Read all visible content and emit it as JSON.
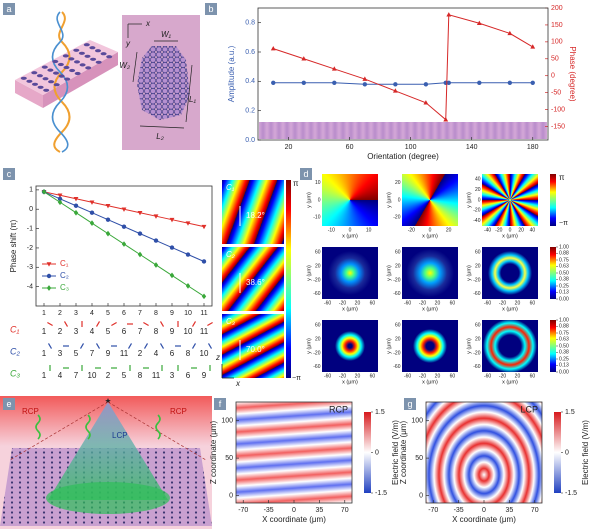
{
  "panel_labels": [
    "a",
    "b",
    "c",
    "d",
    "e",
    "f",
    "g"
  ],
  "panel_a": {
    "axes": [
      "x",
      "y"
    ],
    "dims": [
      "W₁",
      "W₂",
      "L₁",
      "L₂"
    ]
  },
  "chart_data": [
    {
      "type": "line",
      "x": [
        10,
        30,
        50,
        70,
        90,
        110,
        123,
        125,
        145,
        165,
        180
      ],
      "xlim": [
        0,
        190
      ],
      "xticks": [
        20,
        60,
        100,
        140,
        180
      ],
      "xlabel": "Orientation (degree)",
      "ylabel": "Amplitude (a.u.)",
      "y2label": "Phase (degree)",
      "ylim": [
        0,
        0.9
      ],
      "yticks": [
        {
          "value": 0,
          "label": "0.0"
        },
        0.2,
        0.4,
        0.6,
        0.8
      ],
      "y2lim": [
        -190,
        200
      ],
      "y2ticks": [
        -150,
        -100,
        -50,
        0,
        50,
        100,
        150,
        200
      ],
      "series": [
        {
          "color": "#3a5fb0",
          "marker": "circle",
          "values": [
            0.39,
            0.39,
            0.39,
            0.38,
            0.38,
            0.38,
            0.39,
            0.39,
            0.39,
            0.39,
            0.39
          ]
        },
        {
          "color": "#d62828",
          "marker": "triangle",
          "axis": "y2",
          "values": [
            80,
            50,
            20,
            -10,
            -45,
            -80,
            -130,
            180,
            155,
            125,
            85
          ]
        }
      ]
    },
    {
      "type": "line",
      "x": [
        1,
        2,
        3,
        4,
        5,
        6,
        7,
        8,
        9,
        10,
        11
      ],
      "xlim": [
        0.5,
        11.5
      ],
      "xticks": [
        1,
        2,
        3,
        4,
        5,
        6,
        7,
        8,
        9,
        10,
        11
      ],
      "ylabel": "Phase shift (π)",
      "ylim": [
        -5,
        1.2
      ],
      "yticks": [
        1,
        0,
        -1,
        -2,
        -3,
        -4
      ],
      "legend": "lower left",
      "series": [
        {
          "name": "C₁",
          "color": "#e0302a",
          "marker": "triangle-down",
          "values": [
            0.9,
            0.72,
            0.54,
            0.36,
            0.18,
            0,
            -0.18,
            -0.36,
            -0.54,
            -0.72,
            -0.9
          ]
        },
        {
          "name": "C₂",
          "color": "#2f4fa8",
          "marker": "circle",
          "values": [
            0.9,
            0.54,
            0.18,
            -0.18,
            -0.54,
            -0.9,
            -1.26,
            -1.62,
            -1.98,
            -2.34,
            -2.7
          ]
        },
        {
          "name": "C₃",
          "color": "#3aa83a",
          "marker": "diamond",
          "values": [
            0.9,
            0.36,
            -0.18,
            -0.72,
            -1.26,
            -1.8,
            -2.34,
            -2.88,
            -3.42,
            -3.96,
            -4.5
          ]
        }
      ]
    },
    {
      "type": "heatmap",
      "title": "RCP",
      "xlabel": "X coordinate (μm)",
      "ylabel": "Z coordinate (μm)",
      "xlim": [
        -80,
        80
      ],
      "xticks": [
        -70,
        -35,
        0,
        35,
        70
      ],
      "ylim": [
        -10,
        125
      ],
      "yticks": [
        0,
        50,
        100
      ],
      "clim": [
        -1.5,
        1.5
      ],
      "cticks": [
        1.5,
        0,
        -1.5
      ],
      "clabel": "Electric field (V/m)"
    },
    {
      "type": "heatmap",
      "title": "LCP",
      "xlabel": "X coordinate (μm)",
      "ylabel": "Z coordinate (μm)",
      "xlim": [
        -80,
        80
      ],
      "xticks": [
        -70,
        -35,
        0,
        35,
        70
      ],
      "ylim": [
        -10,
        125
      ],
      "yticks": [
        0,
        50,
        100
      ],
      "clim": [
        -1.5,
        1.5
      ],
      "cticks": [
        1.5,
        0,
        -1.5
      ],
      "clabel": "Electric field (V/m)"
    }
  ],
  "panel_c": {
    "orders": [
      [
        1,
        2,
        3,
        4,
        5,
        6,
        7,
        8,
        9,
        10,
        11
      ],
      [
        1,
        3,
        5,
        7,
        9,
        11,
        2,
        4,
        6,
        8,
        10
      ],
      [
        1,
        4,
        7,
        10,
        2,
        5,
        8,
        11,
        3,
        6,
        9
      ]
    ],
    "angles": [
      "18.2°",
      "38.6°",
      "70.0°"
    ],
    "colorbar": [
      "π",
      "−π"
    ],
    "axes": [
      "z",
      "x"
    ]
  },
  "panel_d": {
    "xlabel": "x (μm)",
    "ylabel": "y (μm)",
    "phase_bar": [
      "π",
      "−π"
    ],
    "intensity_ticks": [
      {
        "value": 1,
        "label": "1.00"
      },
      0.88,
      0.75,
      0.63,
      {
        "value": 0.5,
        "label": "0.50"
      },
      0.38,
      0.25,
      0.13,
      {
        "value": 0,
        "label": "0.00"
      }
    ],
    "images": [
      [
        {
          "lim": [
            -15,
            15
          ],
          "ticks": [
            -10,
            0,
            10
          ]
        },
        {
          "lim": [
            -30,
            30
          ],
          "ticks": [
            -20,
            0,
            20
          ]
        },
        {
          "lim": [
            -50,
            50
          ],
          "ticks": [
            -40,
            -20,
            0,
            20,
            40
          ]
        }
      ],
      [
        {
          "lim": [
            -75,
            75
          ],
          "ticks": [
            -60,
            -20,
            20,
            60
          ]
        },
        {
          "lim": [
            -75,
            75
          ],
          "ticks": [
            -60,
            -20,
            20,
            60
          ]
        },
        {
          "lim": [
            -75,
            75
          ],
          "ticks": [
            -60,
            -20,
            20,
            60
          ]
        }
      ],
      [
        {
          "lim": [
            -75,
            75
          ],
          "ticks": [
            -60,
            -20,
            20,
            60
          ]
        },
        {
          "lim": [
            -75,
            75
          ],
          "ticks": [
            -60,
            -20,
            20,
            60
          ]
        },
        {
          "lim": [
            -75,
            75
          ],
          "ticks": [
            -60,
            -20,
            20,
            60
          ]
        }
      ]
    ]
  },
  "panel_e": {
    "labels": [
      "RCP",
      "LCP",
      "RCP"
    ]
  }
}
